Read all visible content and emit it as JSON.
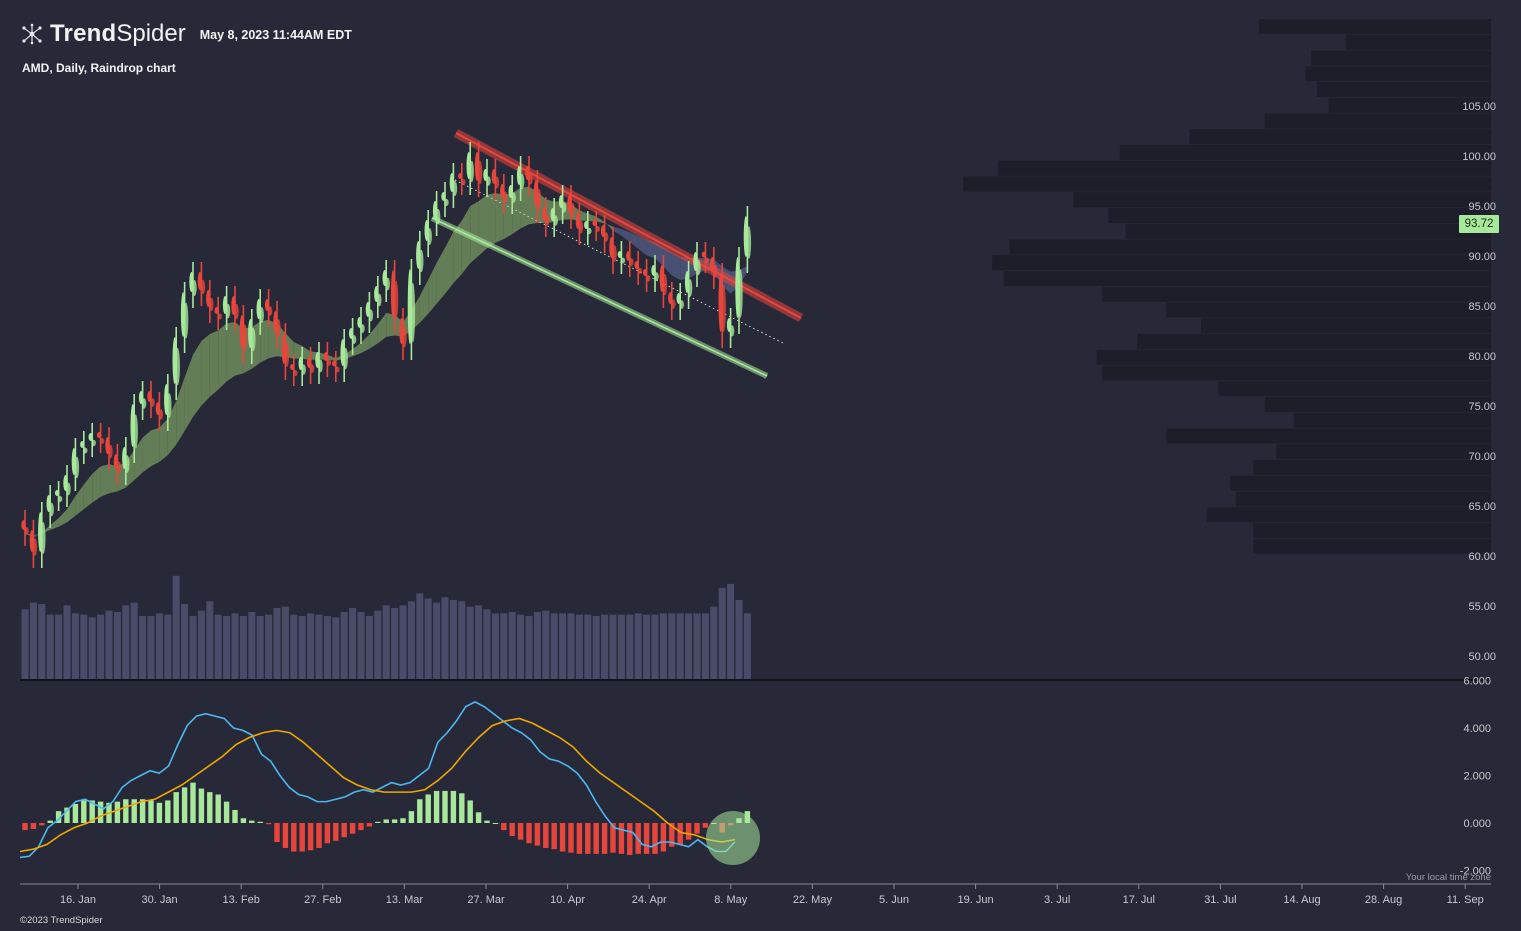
{
  "header": {
    "brand_bold": "Trend",
    "brand_light": "Spider",
    "timestamp": "May 8, 2023 11:44AM EDT",
    "subtitle": "AMD, Daily, Raindrop chart"
  },
  "footer": {
    "copyright": "©2023 TrendSpider",
    "timezone_note": "Your local time zone"
  },
  "last_price": "93.72",
  "colors": {
    "background": "#272938",
    "up": "#a8e89a",
    "down": "#e8463c",
    "macd_line": "#4db8f0",
    "signal_line": "#f0a800",
    "volume": "#4a4b69",
    "volume_profile": "#1d1e29",
    "resistance": "#e8463c",
    "support": "#a8e89a"
  },
  "chart_data": [
    {
      "type": "candlestick",
      "title": "AMD, Daily, Raindrop chart",
      "x_ticks": [
        "16. Jan",
        "30. Jan",
        "13. Feb",
        "27. Feb",
        "13. Mar",
        "27. Mar",
        "10. Apr",
        "24. Apr",
        "8. May",
        "22. May",
        "5. Jun",
        "19. Jun",
        "3. Jul",
        "17. Jul",
        "31. Jul",
        "14. Aug",
        "28. Aug",
        "11. Sep"
      ],
      "y_ticks": [
        "105.00",
        "100.00",
        "95.00",
        "90.00",
        "85.00",
        "80.00",
        "75.00",
        "70.00",
        "65.00",
        "60.00",
        "55.00",
        "50.00"
      ],
      "ylim": [
        47.5,
        109
      ],
      "series": [
        {
          "name": "close",
          "values": [
            62.3,
            60.1,
            64.1,
            65.8,
            66.2,
            67.8,
            70.5,
            71.2,
            72.0,
            71.6,
            69.9,
            68.4,
            70.6,
            74.9,
            76.2,
            75.1,
            73.8,
            76.9,
            81.6,
            86.1,
            88.1,
            86.3,
            84.6,
            83.9,
            85.7,
            83.8,
            80.5,
            83.4,
            85.4,
            84.2,
            82.0,
            78.9,
            78.3,
            79.6,
            78.5,
            80.1,
            79.2,
            78.7,
            81.4,
            82.5,
            83.6,
            85.1,
            86.7,
            88.3,
            83.5,
            80.9,
            88.4,
            91.2,
            93.3,
            95.2,
            96.1,
            98.0,
            97.4,
            100.1,
            97.2,
            98.4,
            96.9,
            95.5,
            96.8,
            98.7,
            97.3,
            94.6,
            93.2,
            94.5,
            95.8,
            94.0,
            92.4,
            93.2,
            92.8,
            91.6,
            89.5,
            90.2,
            89.2,
            88.4,
            87.7,
            88.8,
            86.1,
            84.9,
            86.0,
            88.2,
            90.1,
            89.6,
            88.0,
            82.1,
            83.5,
            89.6,
            93.7
          ]
        },
        {
          "name": "volume",
          "values": [
            52,
            57,
            56,
            48,
            48,
            55,
            49,
            48,
            46,
            48,
            51,
            50,
            55,
            57,
            47,
            47,
            49,
            48,
            77,
            56,
            47,
            51,
            58,
            48,
            47,
            49,
            47,
            50,
            47,
            48,
            53,
            54,
            48,
            47,
            49,
            48,
            47,
            46,
            50,
            53,
            50,
            47,
            51,
            55,
            53,
            55,
            58,
            64,
            60,
            57,
            61,
            59,
            58,
            54,
            55,
            52,
            49,
            49,
            50,
            48,
            47,
            50,
            51,
            49,
            49,
            49,
            48,
            48,
            47,
            48,
            48,
            48,
            48,
            49,
            48,
            48,
            49,
            49,
            49,
            49,
            49,
            49,
            54,
            68,
            71,
            59,
            49
          ]
        },
        {
          "name": "volume_profile",
          "values": [
            4,
            2.5,
            3.1,
            3.2,
            3.0,
            2.8,
            3.9,
            5.2,
            6.4,
            8.5,
            9.1,
            7.2,
            6.6,
            6.3,
            8.3,
            8.6,
            8.4,
            6.7,
            5.6,
            5.0,
            6.1,
            6.8,
            6.7,
            4.7,
            3.9,
            3.4,
            5.6,
            3.7,
            4.1,
            4.5,
            4.4,
            4.9,
            4.1,
            4.1
          ]
        }
      ]
    },
    {
      "type": "line",
      "title": "",
      "ylim": [
        -2.5,
        6
      ],
      "y_ticks": [
        "6.000",
        "4.000",
        "2.000",
        "0.000",
        "-2.000"
      ],
      "series": [
        {
          "name": "macd",
          "values": [
            -1.45,
            -1.4,
            -1.0,
            -0.2,
            0.1,
            0.5,
            0.9,
            1.0,
            0.8,
            0.6,
            0.9,
            1.5,
            1.8,
            2.0,
            2.2,
            2.1,
            2.4,
            3.3,
            4.1,
            4.5,
            4.6,
            4.5,
            4.4,
            4.0,
            3.9,
            3.7,
            2.9,
            2.6,
            2.0,
            1.5,
            1.2,
            1.1,
            0.9,
            0.9,
            1.0,
            1.1,
            1.3,
            1.4,
            1.3,
            1.5,
            1.7,
            1.6,
            1.7,
            2.0,
            2.3,
            3.4,
            3.8,
            4.3,
            4.9,
            5.1,
            4.9,
            4.6,
            4.3,
            4.0,
            3.8,
            3.5,
            3.0,
            2.7,
            2.6,
            2.4,
            2.1,
            1.6,
            0.9,
            0.3,
            -0.2,
            -0.3,
            -0.4,
            -0.9,
            -1.0,
            -0.8,
            -0.8,
            -0.9,
            -1.0,
            -0.7,
            -1.0,
            -1.2,
            -1.2,
            -0.8
          ]
        },
        {
          "name": "signal",
          "values": [
            -1.2,
            -1.1,
            -0.9,
            -0.5,
            -0.2,
            0.0,
            0.3,
            0.5,
            0.7,
            0.9,
            1.0,
            1.3,
            1.6,
            2.0,
            2.4,
            2.8,
            3.3,
            3.6,
            3.8,
            3.9,
            3.8,
            3.4,
            2.9,
            2.4,
            1.9,
            1.6,
            1.4,
            1.3,
            1.3,
            1.3,
            1.4,
            1.8,
            2.3,
            3.0,
            3.6,
            4.1,
            4.3,
            4.4,
            4.2,
            3.9,
            3.6,
            3.2,
            2.6,
            2.1,
            1.7,
            1.3,
            0.9,
            0.5,
            0.0,
            -0.4,
            -0.5,
            -0.7,
            -0.8,
            -0.7
          ]
        },
        {
          "name": "histogram",
          "values": [
            -0.3,
            -0.25,
            -0.1,
            0.1,
            0.5,
            0.65,
            0.8,
            0.95,
            0.95,
            0.9,
            0.85,
            0.9,
            1.0,
            1.0,
            1.0,
            0.95,
            0.85,
            0.95,
            1.3,
            1.5,
            1.7,
            1.45,
            1.3,
            1.2,
            0.9,
            0.55,
            0.2,
            0.1,
            0.05,
            -0.05,
            -0.8,
            -1.05,
            -1.2,
            -1.2,
            -1.15,
            -1.05,
            -0.85,
            -0.75,
            -0.6,
            -0.45,
            -0.3,
            -0.15,
            0.05,
            0.15,
            0.15,
            0.2,
            0.5,
            1.0,
            1.2,
            1.35,
            1.35,
            1.35,
            1.25,
            0.95,
            0.45,
            0.1,
            0.0,
            -0.3,
            -0.55,
            -0.7,
            -0.85,
            -0.95,
            -1.05,
            -1.1,
            -1.2,
            -1.25,
            -1.3,
            -1.3,
            -1.3,
            -1.3,
            -1.25,
            -1.3,
            -1.35,
            -1.3,
            -1.3,
            -1.3,
            -1.2,
            -1.0,
            -0.9,
            -0.7,
            -0.45,
            -0.2,
            0.0,
            -0.4,
            -0.1,
            0.2,
            0.5
          ]
        }
      ]
    }
  ]
}
